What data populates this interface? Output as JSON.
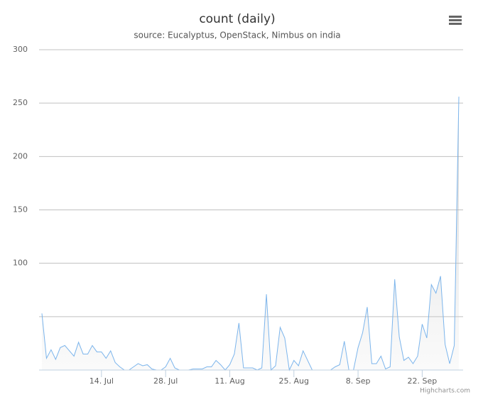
{
  "chart_data": {
    "type": "area",
    "title": "count (daily)",
    "subtitle": "source: Eucalyptus, OpenStack, Nimbus on india",
    "credits": "Highcharts.com",
    "x": [
      "07-01",
      "07-02",
      "07-03",
      "07-04",
      "07-05",
      "07-06",
      "07-07",
      "07-08",
      "07-09",
      "07-10",
      "07-11",
      "07-12",
      "07-13",
      "07-14",
      "07-15",
      "07-16",
      "07-17",
      "07-18",
      "07-19",
      "07-20",
      "07-21",
      "07-22",
      "07-23",
      "07-24",
      "07-25",
      "07-26",
      "07-27",
      "07-28",
      "07-29",
      "07-30",
      "07-31",
      "08-01",
      "08-02",
      "08-03",
      "08-04",
      "08-05",
      "08-06",
      "08-07",
      "08-08",
      "08-09",
      "08-10",
      "08-11",
      "08-12",
      "08-13",
      "08-14",
      "08-15",
      "08-16",
      "08-17",
      "08-18",
      "08-19",
      "08-20",
      "08-21",
      "08-22",
      "08-23",
      "08-24",
      "08-25",
      "08-26",
      "08-27",
      "08-28",
      "08-29",
      "08-30",
      "08-31",
      "09-01",
      "09-02",
      "09-03",
      "09-04",
      "09-05",
      "09-06",
      "09-07",
      "09-08",
      "09-09",
      "09-10",
      "09-11",
      "09-12",
      "09-13",
      "09-14",
      "09-15",
      "09-16",
      "09-17",
      "09-18",
      "09-19",
      "09-20",
      "09-21",
      "09-22",
      "09-23",
      "09-24",
      "09-25",
      "09-26",
      "09-27",
      "09-28",
      "09-29",
      "09-30"
    ],
    "series": [
      {
        "name": "count",
        "color": "#7cb5ec",
        "values": [
          53,
          11,
          19,
          10,
          21,
          23,
          18,
          13,
          26,
          15,
          15,
          23,
          17,
          17,
          11,
          18,
          7,
          3,
          0,
          0,
          3,
          6,
          4,
          5,
          1,
          0,
          0,
          3,
          11,
          2,
          0,
          0,
          0,
          1,
          1,
          1,
          3,
          3,
          9,
          5,
          0,
          5,
          15,
          44,
          2,
          2,
          2,
          0,
          2,
          71,
          0,
          4,
          40,
          30,
          0,
          9,
          4,
          18,
          9,
          0,
          0,
          0,
          0,
          0,
          3,
          5,
          27,
          0,
          0,
          21,
          35,
          59,
          6,
          6,
          13,
          1,
          3,
          85,
          31,
          9,
          12,
          6,
          13,
          43,
          30,
          80,
          72,
          88,
          24,
          6,
          23,
          256
        ]
      }
    ],
    "xlim": [
      "07-01",
      "09-30"
    ],
    "xticks": [
      {
        "value": "07-14",
        "label": "14. Jul"
      },
      {
        "value": "07-28",
        "label": "28. Jul"
      },
      {
        "value": "08-11",
        "label": "11. Aug"
      },
      {
        "value": "08-25",
        "label": "25. Aug"
      },
      {
        "value": "09-08",
        "label": "8. Sep"
      },
      {
        "value": "09-22",
        "label": "22. Sep"
      }
    ],
    "ylim": [
      0,
      300
    ],
    "yticks": [
      {
        "value": 50,
        "label": null
      },
      100,
      150,
      200,
      250,
      300
    ],
    "grid": true
  }
}
